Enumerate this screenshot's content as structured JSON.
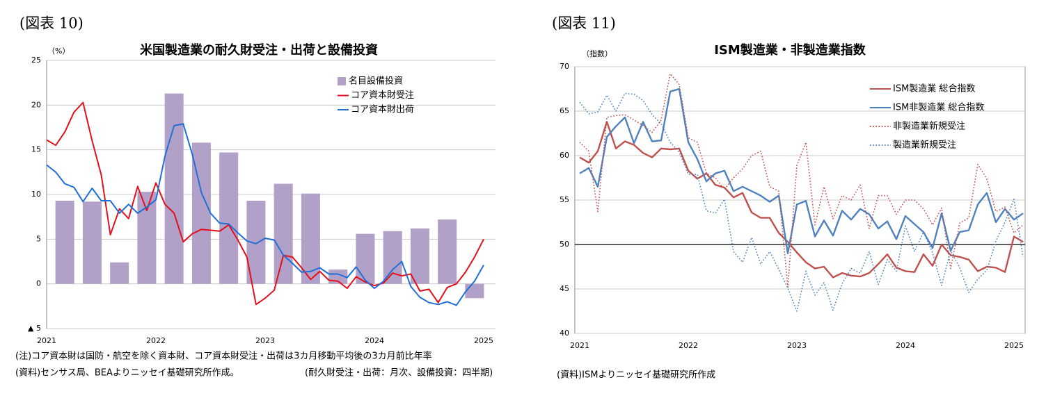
{
  "chart_data": [
    {
      "type": "combo",
      "caption": "(図表 10)",
      "title": "米国製造業の耐久財受注・出荷と設備投資",
      "y_unit": "（%）",
      "categories": [
        "2021",
        null,
        null,
        null,
        null,
        null,
        null,
        null,
        null,
        null,
        null,
        null,
        "2022",
        null,
        null,
        null,
        null,
        null,
        null,
        null,
        null,
        null,
        null,
        null,
        "2023",
        null,
        null,
        null,
        null,
        null,
        null,
        null,
        null,
        null,
        null,
        null,
        "2024",
        null,
        null,
        null,
        null,
        null,
        null,
        null,
        null,
        null,
        null,
        null,
        "2025"
      ],
      "series": [
        {
          "name": "名目設備投資",
          "kind": "bar",
          "color": "#b1a0c7",
          "values": [
            null,
            null,
            9.3,
            null,
            null,
            9.2,
            null,
            null,
            2.4,
            null,
            null,
            10.3,
            null,
            null,
            21.3,
            null,
            null,
            15.8,
            null,
            null,
            14.7,
            null,
            null,
            9.3,
            null,
            null,
            11.2,
            null,
            null,
            10.1,
            null,
            null,
            1.6,
            null,
            null,
            5.6,
            null,
            null,
            5.9,
            null,
            null,
            6.2,
            null,
            null,
            7.2,
            null,
            null,
            -1.6,
            null
          ]
        },
        {
          "name": "コア資本財受注",
          "kind": "line",
          "color": "#e3101b",
          "values": [
            16.1,
            15.5,
            17.0,
            19.2,
            20.3,
            16.0,
            12.2,
            5.5,
            8.4,
            7.3,
            10.9,
            8.2,
            11.3,
            8.9,
            7.9,
            4.7,
            5.6,
            6.1,
            6.0,
            5.9,
            6.6,
            4.9,
            3.0,
            -2.3,
            -1.6,
            -0.7,
            3.2,
            3.0,
            1.8,
            0.5,
            1.4,
            0.4,
            0.3,
            -0.5,
            0.8,
            0.2,
            -0.2,
            0.1,
            1.2,
            0.9,
            1.1,
            -0.8,
            -0.6,
            -2.1,
            -0.4,
            0.0,
            1.3,
            3.0,
            5.0
          ]
        },
        {
          "name": "コア資本財出荷",
          "kind": "line",
          "color": "#1f6fd6",
          "values": [
            13.3,
            12.5,
            11.2,
            10.8,
            9.2,
            10.7,
            9.3,
            9.3,
            7.9,
            8.9,
            7.9,
            8.6,
            9.4,
            14.3,
            17.7,
            17.9,
            14.5,
            10.2,
            7.9,
            6.8,
            6.7,
            5.7,
            4.8,
            4.5,
            5.1,
            4.9,
            3.2,
            2.3,
            1.3,
            1.4,
            1.8,
            1.1,
            1.1,
            0.7,
            1.9,
            0.4,
            -0.5,
            0.3,
            1.6,
            2.5,
            -0.3,
            -1.5,
            -2.1,
            -2.3,
            -2.0,
            -2.4,
            -0.9,
            0.3,
            2.1
          ]
        }
      ],
      "ylim": [
        -5,
        25
      ],
      "yticks": [
        25,
        20,
        15,
        10,
        5,
        0,
        {
          "value": -5,
          "label": "▲ 5"
        }
      ],
      "grid": true,
      "notes": [
        "(注)コア資本財は国防・航空を除く資本財、コア資本財受注・出荷は3カ月移動平均後の3カ月前比年率",
        "(資料)センサス局、BEAよりニッセイ基礎研究所作成。",
        "(耐久財受注・出荷：月次、設備投資：四半期)"
      ]
    },
    {
      "type": "line",
      "caption": "(図表 11)",
      "title": "ISM製造業・非製造業指数",
      "y_unit": "（指数）",
      "categories": [
        "2021",
        null,
        null,
        null,
        null,
        null,
        null,
        null,
        null,
        null,
        null,
        null,
        "2022",
        null,
        null,
        null,
        null,
        null,
        null,
        null,
        null,
        null,
        null,
        null,
        "2023",
        null,
        null,
        null,
        null,
        null,
        null,
        null,
        null,
        null,
        null,
        null,
        "2024",
        null,
        null,
        null,
        null,
        null,
        null,
        null,
        null,
        null,
        null,
        null,
        "2025",
        null
      ],
      "series": [
        {
          "name": "ISM製造業 総合指数",
          "kind": "line",
          "color": "#c0504d",
          "dash": "solid",
          "values": [
            59.8,
            59.2,
            60.5,
            63.8,
            60.8,
            61.6,
            61.2,
            60.3,
            59.8,
            60.8,
            60.7,
            60.8,
            58.3,
            57.4,
            58.0,
            56.7,
            56.4,
            55.3,
            55.8,
            53.6,
            53.0,
            53.0,
            51.3,
            50.3,
            49.1,
            48.0,
            47.3,
            47.5,
            46.3,
            46.8,
            46.5,
            46.4,
            46.8,
            47.8,
            48.9,
            47.4,
            47.0,
            46.9,
            48.9,
            47.6,
            50.0,
            48.8,
            48.6,
            48.3,
            47.0,
            47.5,
            47.4,
            46.9,
            50.9,
            50.3
          ]
        },
        {
          "name": "ISM非製造業 総合指数",
          "kind": "line",
          "color": "#4f81bd",
          "dash": "solid",
          "values": [
            58.0,
            58.6,
            56.5,
            62.1,
            63.3,
            64.3,
            61.4,
            63.8,
            61.6,
            61.7,
            67.2,
            67.5,
            61.5,
            59.6,
            57.1,
            58.0,
            58.3,
            56.0,
            56.5,
            56.0,
            55.5,
            54.8,
            55.5,
            49.0,
            54.5,
            54.9,
            50.9,
            52.7,
            51.0,
            53.8,
            52.8,
            54.0,
            53.4,
            51.8,
            52.6,
            50.6,
            53.2,
            52.3,
            51.4,
            49.6,
            53.5,
            49.3,
            51.4,
            51.6,
            54.5,
            55.8,
            52.5,
            54.0,
            52.8,
            53.5
          ]
        },
        {
          "name": "非製造業新規受注",
          "kind": "line",
          "color": "#c0504d",
          "dash": "dotted",
          "values": [
            61.5,
            60.5,
            53.7,
            64.3,
            64.5,
            64.6,
            64.0,
            63.4,
            62.6,
            64.0,
            69.2,
            68.0,
            62.0,
            61.5,
            58.0,
            57.5,
            56.2,
            57.5,
            58.5,
            60.0,
            60.5,
            56.5,
            56.0,
            45.2,
            58.9,
            61.5,
            52.2,
            56.5,
            52.9,
            55.5,
            55.0,
            56.7,
            51.8,
            55.5,
            55.5,
            53.4,
            55.0,
            55.0,
            54.0,
            52.2,
            54.1,
            47.3,
            52.4,
            53.0,
            59.0,
            57.4,
            53.7,
            54.2,
            51.3,
            52.2
          ]
        },
        {
          "name": "製造業新規受注",
          "kind": "line",
          "color": "#4f81bd",
          "dash": "dotted",
          "values": [
            66.0,
            64.7,
            64.9,
            66.8,
            65.0,
            67.0,
            66.9,
            66.2,
            64.6,
            63.6,
            61.5,
            60.4,
            57.9,
            57.9,
            53.8,
            53.5,
            55.1,
            49.2,
            48.0,
            50.8,
            47.8,
            49.2,
            47.2,
            45.1,
            42.5,
            47.0,
            44.3,
            45.7,
            42.6,
            45.6,
            47.3,
            46.8,
            49.2,
            45.5,
            48.3,
            47.0,
            52.1,
            49.2,
            51.4,
            49.1,
            45.4,
            49.3,
            47.4,
            44.6,
            46.1,
            47.1,
            50.4,
            52.5,
            55.1,
            48.6
          ]
        }
      ],
      "ylim": [
        40,
        70
      ],
      "yticks": [
        70,
        65,
        60,
        55,
        50,
        45,
        40
      ],
      "grid": true,
      "reference_line": 50,
      "notes": [
        "(資料)ISMよりニッセイ基礎研究所作成"
      ]
    }
  ]
}
